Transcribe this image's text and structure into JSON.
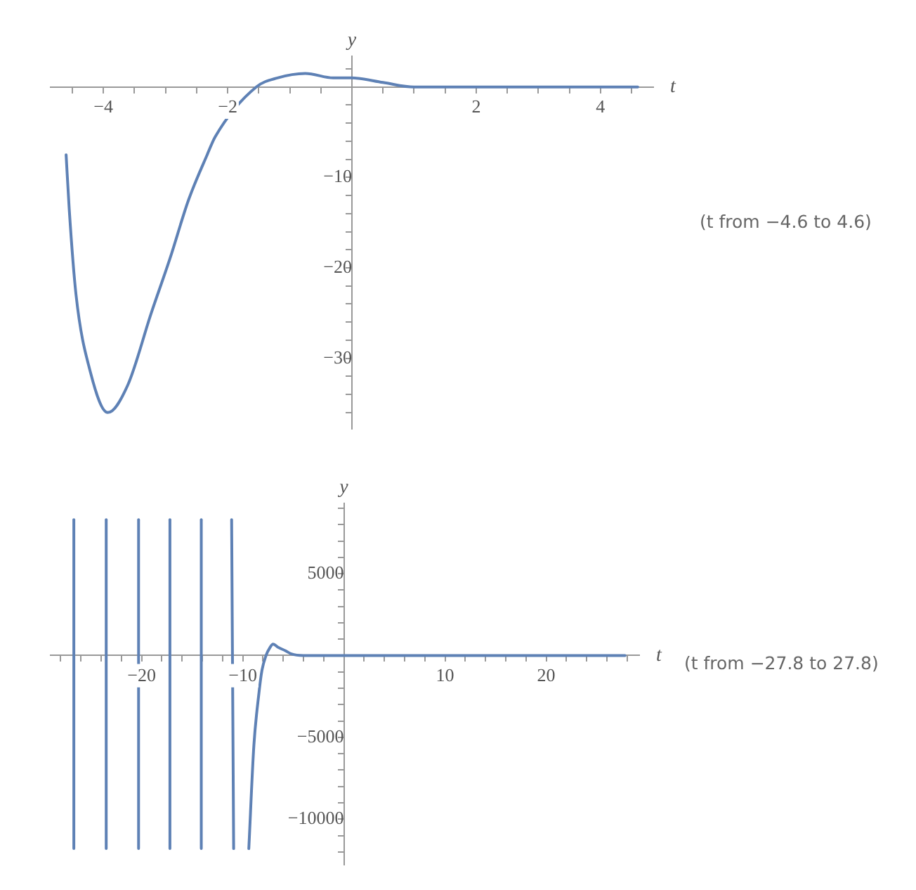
{
  "chart_data": [
    {
      "type": "line",
      "xlabel": "t",
      "ylabel": "y",
      "xlim": [
        -4.85,
        4.85
      ],
      "ylim": [
        -37.8,
        3.4
      ],
      "xticks": [
        {
          "value": -4.5,
          "label": null
        },
        {
          "value": -4,
          "label": "−4"
        },
        {
          "value": -3.5,
          "label": null
        },
        {
          "value": -3,
          "label": null
        },
        {
          "value": -2.5,
          "label": null
        },
        {
          "value": -2,
          "label": "−2"
        },
        {
          "value": -1.5,
          "label": null
        },
        {
          "value": -1,
          "label": null
        },
        {
          "value": -0.5,
          "label": null
        },
        {
          "value": 0.5,
          "label": null
        },
        {
          "value": 1,
          "label": null
        },
        {
          "value": 1.5,
          "label": null
        },
        2,
        {
          "value": 2.5,
          "label": null
        },
        {
          "value": 3,
          "label": null
        },
        {
          "value": 3.5,
          "label": null
        },
        4,
        {
          "value": 4.5,
          "label": null
        }
      ],
      "yticks": [
        {
          "value": 2,
          "label": null
        },
        {
          "value": -2,
          "label": null
        },
        {
          "value": -4,
          "label": null
        },
        {
          "value": -6,
          "label": null
        },
        {
          "value": -8,
          "label": null
        },
        {
          "value": -10,
          "label": "−10"
        },
        {
          "value": -12,
          "label": null
        },
        {
          "value": -14,
          "label": null
        },
        {
          "value": -16,
          "label": null
        },
        {
          "value": -18,
          "label": null
        },
        {
          "value": -20,
          "label": "−20"
        },
        {
          "value": -22,
          "label": null
        },
        {
          "value": -24,
          "label": null
        },
        {
          "value": -26,
          "label": null
        },
        {
          "value": -28,
          "label": null
        },
        {
          "value": -30,
          "label": "−30"
        },
        {
          "value": -32,
          "label": null
        },
        {
          "value": -34,
          "label": null
        },
        {
          "value": -36,
          "label": null
        }
      ],
      "series": [
        {
          "color": "#5e81b5",
          "x": [
            -4.6,
            -4.55,
            -4.44,
            -4.21,
            -3.93,
            -3.61,
            -3.23,
            -2.93,
            -2.63,
            -2.33,
            -2.2,
            -1.54,
            -1.2,
            -0.75,
            -0.3,
            0,
            0.5,
            1,
            1.5,
            2,
            3,
            4,
            4.6
          ],
          "values": [
            -7.5,
            -13.5,
            -23,
            -31.5,
            -36,
            -33,
            -25,
            -19,
            -12.5,
            -7.5,
            -5.5,
            0,
            1,
            1.5,
            1,
            1,
            0.5,
            0,
            0,
            0,
            0,
            0,
            0
          ]
        }
      ],
      "grid": false,
      "legend": false,
      "annotations": [
        "(t from −4.6 to 4.6)"
      ]
    },
    {
      "type": "line",
      "xlabel": "t",
      "ylabel": "y",
      "xlim": [
        -29,
        29.2
      ],
      "ylim": [
        -12800,
        9300
      ],
      "xticks": [
        {
          "value": -28,
          "label": null
        },
        {
          "value": -26,
          "label": null
        },
        {
          "value": -24,
          "label": null
        },
        {
          "value": -22,
          "label": null
        },
        {
          "value": -20,
          "label": "−20"
        },
        {
          "value": -18,
          "label": null
        },
        {
          "value": -16,
          "label": null
        },
        {
          "value": -14,
          "label": null
        },
        {
          "value": -12,
          "label": null
        },
        {
          "value": -10,
          "label": "−10"
        },
        {
          "value": -8,
          "label": null
        },
        {
          "value": -6,
          "label": null
        },
        {
          "value": -4,
          "label": null
        },
        {
          "value": -2,
          "label": null
        },
        {
          "value": 2,
          "label": null
        },
        {
          "value": 4,
          "label": null
        },
        {
          "value": 6,
          "label": null
        },
        {
          "value": 8,
          "label": null
        },
        10,
        {
          "value": 12,
          "label": null
        },
        {
          "value": 14,
          "label": null
        },
        {
          "value": 16,
          "label": null
        },
        {
          "value": 18,
          "label": null
        },
        20,
        {
          "value": 22,
          "label": null
        },
        {
          "value": 24,
          "label": null
        },
        {
          "value": 26,
          "label": null
        },
        {
          "value": 28,
          "label": null
        }
      ],
      "yticks": [
        {
          "value": 9000,
          "label": null
        },
        {
          "value": 8000,
          "label": null
        },
        {
          "value": 7000,
          "label": null
        },
        {
          "value": 6000,
          "label": null
        },
        5000,
        {
          "value": 4000,
          "label": null
        },
        {
          "value": 3000,
          "label": null
        },
        {
          "value": 2000,
          "label": null
        },
        {
          "value": 1000,
          "label": null
        },
        {
          "value": -1000,
          "label": null
        },
        {
          "value": -2000,
          "label": null
        },
        {
          "value": -3000,
          "label": null
        },
        {
          "value": -4000,
          "label": null
        },
        {
          "value": -5000,
          "label": "−5000"
        },
        {
          "value": -6000,
          "label": null
        },
        {
          "value": -7000,
          "label": null
        },
        {
          "value": -8000,
          "label": null
        },
        {
          "value": -9000,
          "label": null
        },
        {
          "value": -10000,
          "label": "−10000"
        },
        {
          "value": -11000,
          "label": null
        },
        {
          "value": -12000,
          "label": null
        }
      ],
      "series": [
        {
          "color": "#5e81b5",
          "x": [
            -26.7,
            -26.7
          ],
          "values": [
            8300,
            -11800
          ]
        },
        {
          "color": "#5e81b5",
          "x": [
            -23.5,
            -23.5
          ],
          "values": [
            8300,
            -11800
          ]
        },
        {
          "color": "#5e81b5",
          "x": [
            -20.3,
            -20.3
          ],
          "values": [
            8300,
            -11800
          ]
        },
        {
          "color": "#5e81b5",
          "x": [
            -17.2,
            -17.2
          ],
          "values": [
            8300,
            -11800
          ]
        },
        {
          "color": "#5e81b5",
          "x": [
            -14.1,
            -14.1
          ],
          "values": [
            8300,
            -11800
          ]
        },
        {
          "color": "#5e81b5",
          "x": [
            -11.1,
            -10.9
          ],
          "values": [
            8300,
            -11800
          ]
        },
        {
          "color": "#5e81b5",
          "x": [
            -9.4,
            -8.9,
            -8.4,
            -8.1,
            -7.7,
            -7.3,
            -7,
            -6.5,
            -5.8,
            -5.2,
            -4,
            -2,
            0,
            5,
            10,
            20,
            27.8
          ],
          "values": [
            -11800,
            -5500,
            -2300,
            -900,
            0,
            500,
            700,
            500,
            300,
            100,
            0,
            0,
            0,
            0,
            0,
            0,
            0
          ]
        }
      ],
      "grid": false,
      "legend": false,
      "annotations": [
        "(t from −27.8 to 27.8)"
      ]
    }
  ]
}
